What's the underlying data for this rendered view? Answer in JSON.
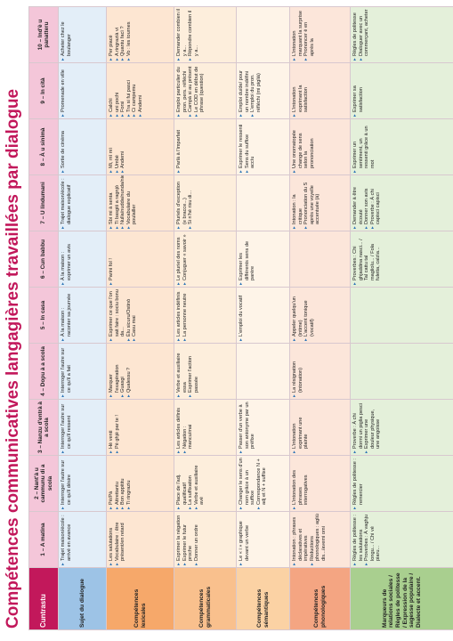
{
  "title": "Compétences communicatives langagières travaillées par dialogue",
  "header": {
    "corner": "Cuntrastu",
    "columns": [
      "1 – A matina",
      "2 – Nant'à u cammunu di a scola",
      "3 – Nanzu d'entrà à a scola",
      "4 – Dopu à a scola",
      "5 – In casa",
      "6 – Cun babbu",
      "7 – U lindumani",
      "8 – À u sinimà",
      "9 – In cità",
      "10 – Ind'è u panatteru"
    ]
  },
  "rows": [
    {
      "label": "Sujet du dialogue",
      "cells": [
        [
          "Trajet maison/école : arrivé en avance"
        ],
        [
          "Interroger l'autre sur ce qu'il désire"
        ],
        [
          "Interroger l'autre sur ce qu'il ressent"
        ],
        [
          "Interroger l'autre sur ce qu'il a fait"
        ],
        [
          "À la maison : raconter sa journée"
        ],
        [
          "À la maison : exprimer un avis"
        ],
        [
          "Trajet maison/école : dialogue explicatif"
        ],
        [
          "Sortie de cinéma"
        ],
        [
          "Promenade en ville"
        ],
        [
          "Acheter chez le boulanger"
        ]
      ]
    },
    {
      "label": "Compétences lexicales",
      "cells": [
        [
          "Les salutations",
          "Vocabulaire : être présent/en retard"
        ],
        [
          "Pè/Pà",
          "Attrettantu",
          "Bon appititu",
          "Ti ringraziu"
        ],
        [
          "Hè venti",
          "Pè ghjè par te !"
        ],
        [
          "Marquer l'exagération",
          "Guasgi",
          "Qualessu ?"
        ],
        [
          "Exprimer ce que l'on sait faire : sociu bonu da...",
          "Èlu sicuru/Ostinò",
          "Casu mai"
        ],
        [
          "Parini fol !"
        ],
        [
          "Sbi mi à senta",
          "Ti basgiti a ragnjò",
          "Nulla/nudda/nunda/nienti",
          "Vocabulaire du poulailler"
        ],
        [
          "Mi, mì mì",
          "Umbè",
          "Andemi"
        ],
        [
          "Calchì",
          "uni pochi",
          "Forsi",
          "Tra si fui pasci",
          "Ci campemu",
          "Andemi"
        ],
        [
          "Per piacè",
          "A ringrazià vi",
          "Quantu facì ?",
          "Vo : les tournes"
        ]
      ]
    },
    {
      "label": "Compétences grammaticales",
      "cells": [
        [
          "Exprimer la négation",
          "Exprimer le futur proche",
          "Donner un ordre"
        ],
        [
          "Place de l'adj. qualificatif",
          "La suffixation",
          "Verbe et auxiliaire avé"
        ],
        [
          "Les articles définis",
          "Négation : mancu/mai"
        ],
        [
          "Verbe et auxiliaire essa",
          "Exprimer l'action passée"
        ],
        [
          "Les articles indéfinis",
          "La personne neutre"
        ],
        [
          "Le pluriel des noms",
          "Conjuguer « savoir »"
        ],
        [
          "Pluriels d'exception (e bracce...)",
          "Si n'hè risu di..."
        ],
        [
          "Parlà à l'imparfait"
        ],
        [
          "Emploi particulier du pron. pers. réfléchi",
          "Campà si au présent",
          "Le COD en début de phrase (question)"
        ],
        [
          "Demander combien il y a...",
          "Répondre combien il y a..."
        ]
      ]
    },
    {
      "label": "Compétences sémantiques",
      "cells": [
        [
          "Le « i » graphique devant un verbe"
        ],
        [
          "Changer le sens d'un nom grâce à un suffixe",
          "Correspondance N + adj et N + suffixe"
        ],
        [
          "Passer d'un verbe à son antonyme par un préfixe"
        ],
        [],
        [
          "L'emploi du vocatif"
        ],
        [
          "Exprimer les différents sens de parère"
        ],
        [],
        [
          "Exprimer le ressenti",
          "Sens du suffixe accìu"
        ],
        [
          "Emploi du/de/ pour un nombre indéfini",
          "L'emploi du pron. réfléchi (mi piglià)"
        ],
        []
      ]
    },
    {
      "label": "Compétences phonologiques",
      "cells": [
        [
          "Intonation : phrases déclaratives et impératives",
          "Réductions phonologiques : agliù dis.../avemi omi"
        ],
        [
          "L'intonation des phrases interrogatives"
        ],
        [
          "L'intonation exprimant une plainte"
        ],
        [
          "La résignation (intonation)"
        ],
        [
          "Appeler quelqu'un (intime)",
          "L'accent tonique (vocatif)"
        ],
        [],
        [
          "Intonation : la critique",
          "Prononciation du S après une voyelle accentuée (à)"
        ],
        [
          "Une onomatopée change de sens selon la prononciation"
        ],
        [
          "L'intonation exprimant la satisfaction"
        ],
        [
          "L'intonation marquant la surprise",
          "Prononcer è en après la"
        ]
      ]
    },
    {
      "label": "Marqueurs de relations sociales / Règles de politesse / Expression de la sagesse populaire / Dialecte et accent.",
      "cells": [
        [
          "Règles de politesse : les salutations",
          "Proverbes : À vaghju longu... / Chi vé piaru..."
        ],
        [
          "Règles de politesse : remercier"
        ],
        [
          "Proverbe : À chi dormi un piglia pesci",
          "Exprimer une douleur physique, une angoisse"
        ],
        [],
        [],
        [
          "Proverbes : Chi ghjaddina nasci... / Tal cattu tal magliolu... / Fola fuletta, calzìa..."
        ],
        [
          "Demander à être écouté",
          "Donner son avis",
          "Proverbe : À chi capisci capisci"
        ],
        [
          "Exprimer un sentiment, un ressenti grâce à un mot"
        ],
        [
          "Exprimer sa satisfaction"
        ],
        [
          "Règles de politesse",
          "Dialoguer avec un commerçant, acheter"
        ]
      ]
    }
  ]
}
